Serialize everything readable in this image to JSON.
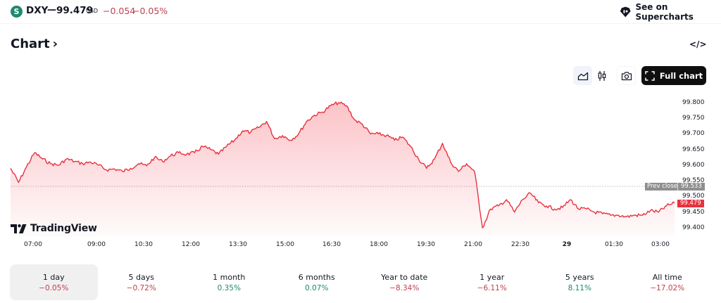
{
  "header": {
    "symbol_logo_letter": "S",
    "symbol": "DXY",
    "dash": "—",
    "price": "99.479",
    "currency": "USD",
    "change": "−0.054",
    "change_percent": "−0.05%",
    "supercharts_label": "See on Supercharts",
    "supercharts_icon": "tradingview-badge-icon"
  },
  "section": {
    "title": "Chart",
    "title_chevron": "›",
    "embed_icon": "</>"
  },
  "toolbar": {
    "area_chart_icon": "area-chart-icon",
    "candles_icon": "candlestick-icon",
    "snapshot_icon": "camera-icon",
    "full_chart_label": "Full chart"
  },
  "colors": {
    "line": "#e8313f",
    "negative": "#c0404f",
    "positive": "#1e8a6e",
    "prev_close_tag": "#8f8f8f",
    "last_price_tag": "#e8313f"
  },
  "chart_data": {
    "type": "area",
    "title": "DXY",
    "xlabel": "",
    "ylabel": "",
    "ylim": [
      99.38,
      99.83
    ],
    "y_ticks": [
      "99.800",
      "99.750",
      "99.700",
      "99.650",
      "99.600",
      "99.550",
      "99.500",
      "99.450",
      "99.400"
    ],
    "x_ticks": [
      "07:00",
      "09:00",
      "10:30",
      "12:00",
      "13:30",
      "15:00",
      "16:30",
      "18:00",
      "19:30",
      "21:00",
      "22:30",
      "29",
      "01:30",
      "03:00"
    ],
    "prev_close_label": "Prev close",
    "prev_close": "99.533",
    "last_price": "99.479",
    "grid": false,
    "legend": "none",
    "series": [
      {
        "name": "DXY",
        "x": [
          "06:30",
          "06:45",
          "07:00",
          "07:15",
          "07:30",
          "07:45",
          "08:00",
          "08:15",
          "08:30",
          "08:45",
          "09:00",
          "09:15",
          "09:30",
          "09:45",
          "10:00",
          "10:15",
          "10:30",
          "10:45",
          "11:00",
          "11:15",
          "11:30",
          "11:45",
          "12:00",
          "12:15",
          "12:30",
          "12:45",
          "13:00",
          "13:15",
          "13:30",
          "13:45",
          "14:00",
          "14:15",
          "14:30",
          "14:45",
          "15:00",
          "15:15",
          "15:30",
          "15:45",
          "16:00",
          "16:15",
          "16:30",
          "16:45",
          "17:00",
          "17:15",
          "17:30",
          "17:45",
          "18:00",
          "18:15",
          "18:30",
          "18:45",
          "19:00",
          "19:15",
          "19:30",
          "19:45",
          "20:00",
          "20:15",
          "20:30",
          "20:45",
          "21:00",
          "21:15",
          "21:30",
          "21:45",
          "22:00",
          "22:15",
          "22:30",
          "22:45",
          "23:00",
          "23:15",
          "23:30",
          "23:45",
          "00:00",
          "00:15",
          "00:30",
          "00:45",
          "01:00",
          "01:15",
          "01:30",
          "01:45",
          "02:00",
          "02:15",
          "02:30",
          "02:45",
          "03:00",
          "03:15"
        ],
        "values": [
          99.59,
          99.545,
          99.595,
          99.64,
          99.62,
          99.605,
          99.6,
          99.62,
          99.612,
          99.605,
          99.61,
          99.6,
          99.585,
          99.588,
          99.58,
          99.59,
          99.605,
          99.598,
          99.625,
          99.612,
          99.63,
          99.64,
          99.635,
          99.64,
          99.66,
          99.65,
          99.635,
          99.66,
          99.68,
          99.71,
          99.705,
          99.72,
          99.74,
          99.685,
          99.695,
          99.68,
          99.7,
          99.74,
          99.76,
          99.77,
          99.79,
          99.8,
          99.79,
          99.745,
          99.73,
          99.7,
          99.7,
          99.695,
          99.68,
          99.69,
          99.66,
          99.62,
          99.59,
          99.62,
          99.67,
          99.61,
          99.58,
          99.605,
          99.58,
          99.4,
          99.46,
          99.47,
          99.49,
          99.45,
          99.49,
          99.51,
          99.48,
          99.47,
          99.46,
          99.465,
          99.49,
          99.46,
          99.46,
          99.45,
          99.445,
          99.44,
          99.44,
          99.435,
          99.44,
          99.44,
          99.455,
          99.45,
          99.47,
          99.479
        ]
      }
    ]
  },
  "periods": [
    {
      "label": "1 day",
      "value": "−0.05%",
      "dir": "neg",
      "active": true
    },
    {
      "label": "5 days",
      "value": "−0.72%",
      "dir": "neg",
      "active": false
    },
    {
      "label": "1 month",
      "value": "0.35%",
      "dir": "pos",
      "active": false
    },
    {
      "label": "6 months",
      "value": "0.07%",
      "dir": "pos",
      "active": false
    },
    {
      "label": "Year to date",
      "value": "−8.34%",
      "dir": "neg",
      "active": false
    },
    {
      "label": "1 year",
      "value": "−6.11%",
      "dir": "neg",
      "active": false
    },
    {
      "label": "5 years",
      "value": "8.11%",
      "dir": "pos",
      "active": false
    },
    {
      "label": "All time",
      "value": "−17.02%",
      "dir": "neg",
      "active": false
    }
  ],
  "branding": {
    "tv_label": "TradingView"
  }
}
